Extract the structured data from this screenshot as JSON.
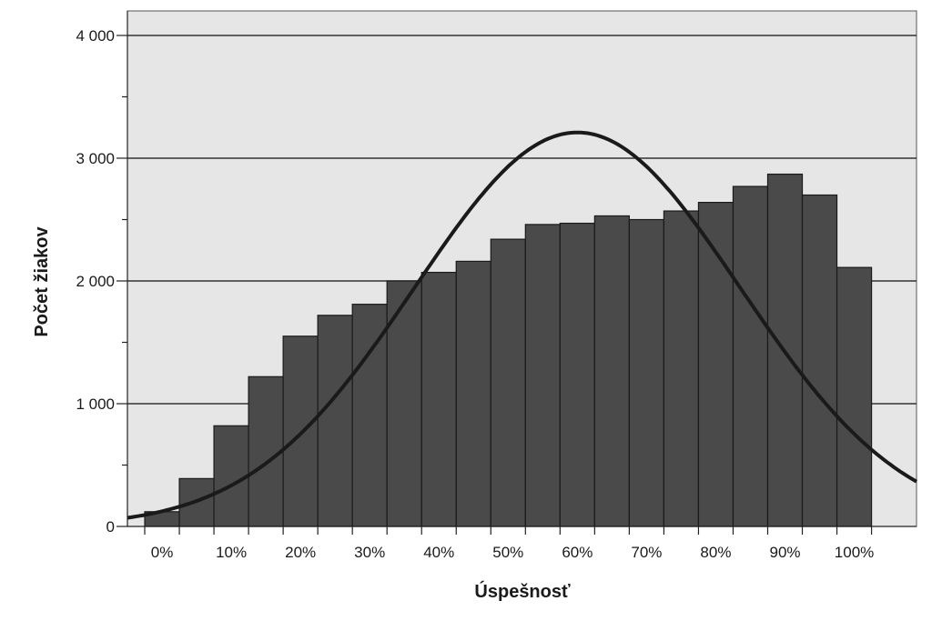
{
  "chart_data": {
    "type": "bar",
    "title": "",
    "xlabel": "Úspešnosť",
    "ylabel": "Počet žiakov",
    "ylim": [
      0,
      4200
    ],
    "xlim": [
      -0.05,
      1.09
    ],
    "grid": true,
    "bin_width": 0.05,
    "y_ticks": [
      {
        "value": 0,
        "label": "0"
      },
      {
        "value": 1000,
        "label": "1 000"
      },
      {
        "value": 2000,
        "label": "2 000"
      },
      {
        "value": 3000,
        "label": "3 000"
      },
      {
        "value": 4000,
        "label": "4 000"
      }
    ],
    "x_ticks": [
      {
        "value": 0.0,
        "label": "0%"
      },
      {
        "value": 0.1,
        "label": "10%"
      },
      {
        "value": 0.2,
        "label": "20%"
      },
      {
        "value": 0.3,
        "label": "30%"
      },
      {
        "value": 0.4,
        "label": "40%"
      },
      {
        "value": 0.5,
        "label": "50%"
      },
      {
        "value": 0.6,
        "label": "60%"
      },
      {
        "value": 0.7,
        "label": "70%"
      },
      {
        "value": 0.8,
        "label": "80%"
      },
      {
        "value": 0.9,
        "label": "90%"
      },
      {
        "value": 1.0,
        "label": "100%"
      }
    ],
    "bins": [
      {
        "x": 0.0,
        "value": 120
      },
      {
        "x": 0.05,
        "value": 390
      },
      {
        "x": 0.1,
        "value": 820
      },
      {
        "x": 0.15,
        "value": 1220
      },
      {
        "x": 0.2,
        "value": 1550
      },
      {
        "x": 0.25,
        "value": 1720
      },
      {
        "x": 0.3,
        "value": 1810
      },
      {
        "x": 0.35,
        "value": 2000
      },
      {
        "x": 0.4,
        "value": 2070
      },
      {
        "x": 0.45,
        "value": 2160
      },
      {
        "x": 0.5,
        "value": 2340
      },
      {
        "x": 0.55,
        "value": 2460
      },
      {
        "x": 0.6,
        "value": 2470
      },
      {
        "x": 0.65,
        "value": 2530
      },
      {
        "x": 0.7,
        "value": 2500
      },
      {
        "x": 0.75,
        "value": 2570
      },
      {
        "x": 0.8,
        "value": 2640
      },
      {
        "x": 0.85,
        "value": 2770
      },
      {
        "x": 0.9,
        "value": 2870
      },
      {
        "x": 0.95,
        "value": 2700
      },
      {
        "x": 1.0,
        "value": 2110
      }
    ],
    "normal_curve": {
      "mean": 0.6,
      "sd": 0.235,
      "peak": 3210
    },
    "colors": {
      "bar_fill": "#4a4a4a",
      "bar_stroke": "#1a1a1a",
      "plot_bg": "#e6e6e6",
      "grid": "#333333",
      "curve": "#1a1a1a"
    }
  }
}
